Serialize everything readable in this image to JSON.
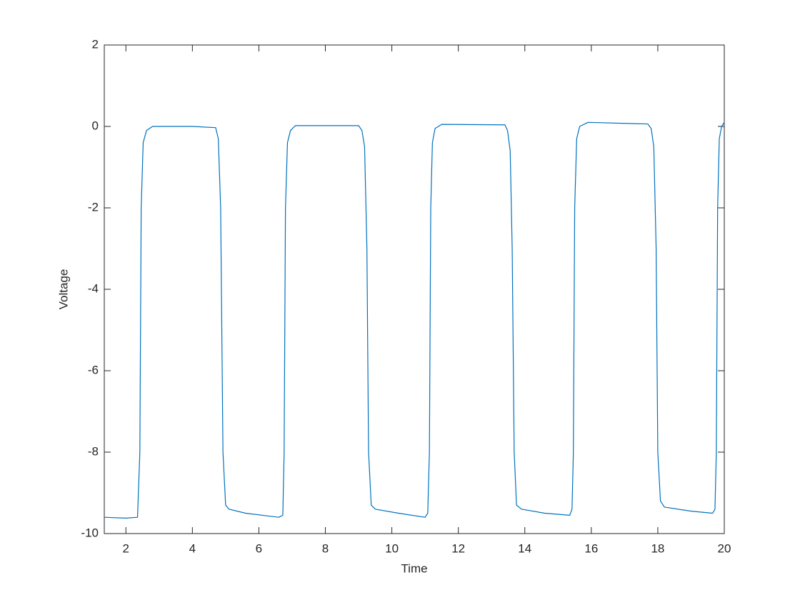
{
  "chart_data": {
    "type": "line",
    "xlabel": "Time",
    "ylabel": "Voltage",
    "x": [
      1.35,
      2.0,
      2.35,
      2.42,
      2.46,
      2.52,
      2.62,
      2.8,
      4.0,
      4.7,
      4.78,
      4.85,
      4.92,
      5.0,
      5.1,
      5.6,
      6.6,
      6.72,
      6.76,
      6.8,
      6.86,
      6.95,
      7.1,
      9.0,
      9.1,
      9.18,
      9.25,
      9.3,
      9.38,
      9.5,
      10.2,
      11.0,
      11.08,
      11.13,
      11.17,
      11.22,
      11.3,
      11.5,
      13.4,
      13.48,
      13.56,
      13.62,
      13.68,
      13.75,
      13.9,
      14.6,
      15.35,
      15.42,
      15.46,
      15.5,
      15.56,
      15.65,
      15.9,
      17.7,
      17.8,
      17.88,
      17.95,
      18.0,
      18.08,
      18.2,
      19.0,
      19.65,
      19.72,
      19.76,
      19.8,
      19.85,
      19.92,
      20.0
    ],
    "series": [
      {
        "color": "#0072bd",
        "values": [
          -9.6,
          -9.62,
          -9.6,
          -8,
          -2,
          -0.4,
          -0.1,
          0,
          0,
          -0.03,
          -0.3,
          -2,
          -8,
          -9.3,
          -9.4,
          -9.5,
          -9.6,
          -9.55,
          -8,
          -2,
          -0.4,
          -0.1,
          0.02,
          0.02,
          -0.1,
          -0.5,
          -3,
          -8,
          -9.3,
          -9.4,
          -9.5,
          -9.6,
          -9.5,
          -8,
          -2,
          -0.4,
          -0.05,
          0.05,
          0.04,
          -0.1,
          -0.6,
          -3,
          -8,
          -9.3,
          -9.4,
          -9.5,
          -9.55,
          -9.4,
          -8,
          -2,
          -0.3,
          0,
          0.1,
          0.06,
          -0.05,
          -0.5,
          -3,
          -8,
          -9.2,
          -9.35,
          -9.45,
          -9.5,
          -9.4,
          -8,
          -2,
          -0.3,
          0,
          0.1
        ]
      }
    ],
    "xlim": [
      1.35,
      20
    ],
    "ylim": [
      -10,
      2
    ],
    "xticks": [
      2,
      4,
      6,
      8,
      10,
      12,
      14,
      16,
      18,
      20
    ],
    "yticks": [
      -10,
      -8,
      -6,
      -4,
      -2,
      0,
      2
    ],
    "grid": false
  }
}
